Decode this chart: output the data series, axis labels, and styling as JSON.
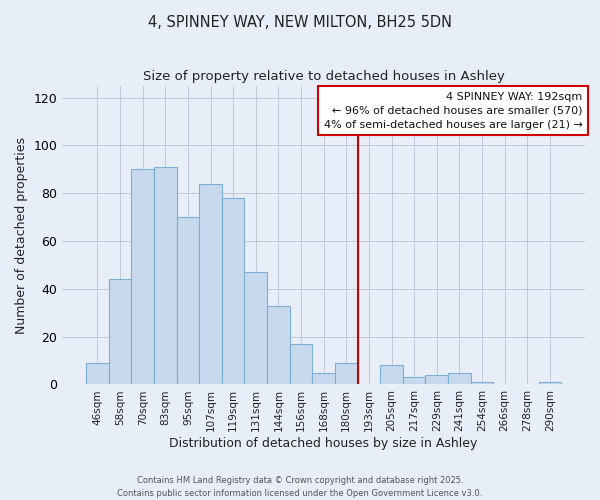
{
  "title": "4, SPINNEY WAY, NEW MILTON, BH25 5DN",
  "subtitle": "Size of property relative to detached houses in Ashley",
  "xlabel": "Distribution of detached houses by size in Ashley",
  "ylabel": "Number of detached properties",
  "footer_lines": [
    "Contains HM Land Registry data © Crown copyright and database right 2025.",
    "Contains public sector information licensed under the Open Government Licence v3.0."
  ],
  "bar_labels": [
    "46sqm",
    "58sqm",
    "70sqm",
    "83sqm",
    "95sqm",
    "107sqm",
    "119sqm",
    "131sqm",
    "144sqm",
    "156sqm",
    "168sqm",
    "180sqm",
    "193sqm",
    "205sqm",
    "217sqm",
    "229sqm",
    "241sqm",
    "254sqm",
    "266sqm",
    "278sqm",
    "290sqm"
  ],
  "bar_values": [
    9,
    44,
    90,
    91,
    70,
    84,
    78,
    47,
    33,
    17,
    5,
    9,
    0,
    8,
    3,
    4,
    5,
    1,
    0,
    0,
    1
  ],
  "bar_color": "#c9d9ed",
  "bar_edge_color": "#7bafd4",
  "ylim": [
    0,
    125
  ],
  "yticks": [
    0,
    20,
    40,
    60,
    80,
    100,
    120
  ],
  "vline_index": 12,
  "vline_color": "#cc0000",
  "annotation_title": "4 SPINNEY WAY: 192sqm",
  "annotation_line1": "← 96% of detached houses are smaller (570)",
  "annotation_line2": "4% of semi-detached houses are larger (21) →",
  "background_color": "#e8eef8",
  "grid_color": "#c0c8d8",
  "title_fontsize": 10.5,
  "subtitle_fontsize": 9.5
}
